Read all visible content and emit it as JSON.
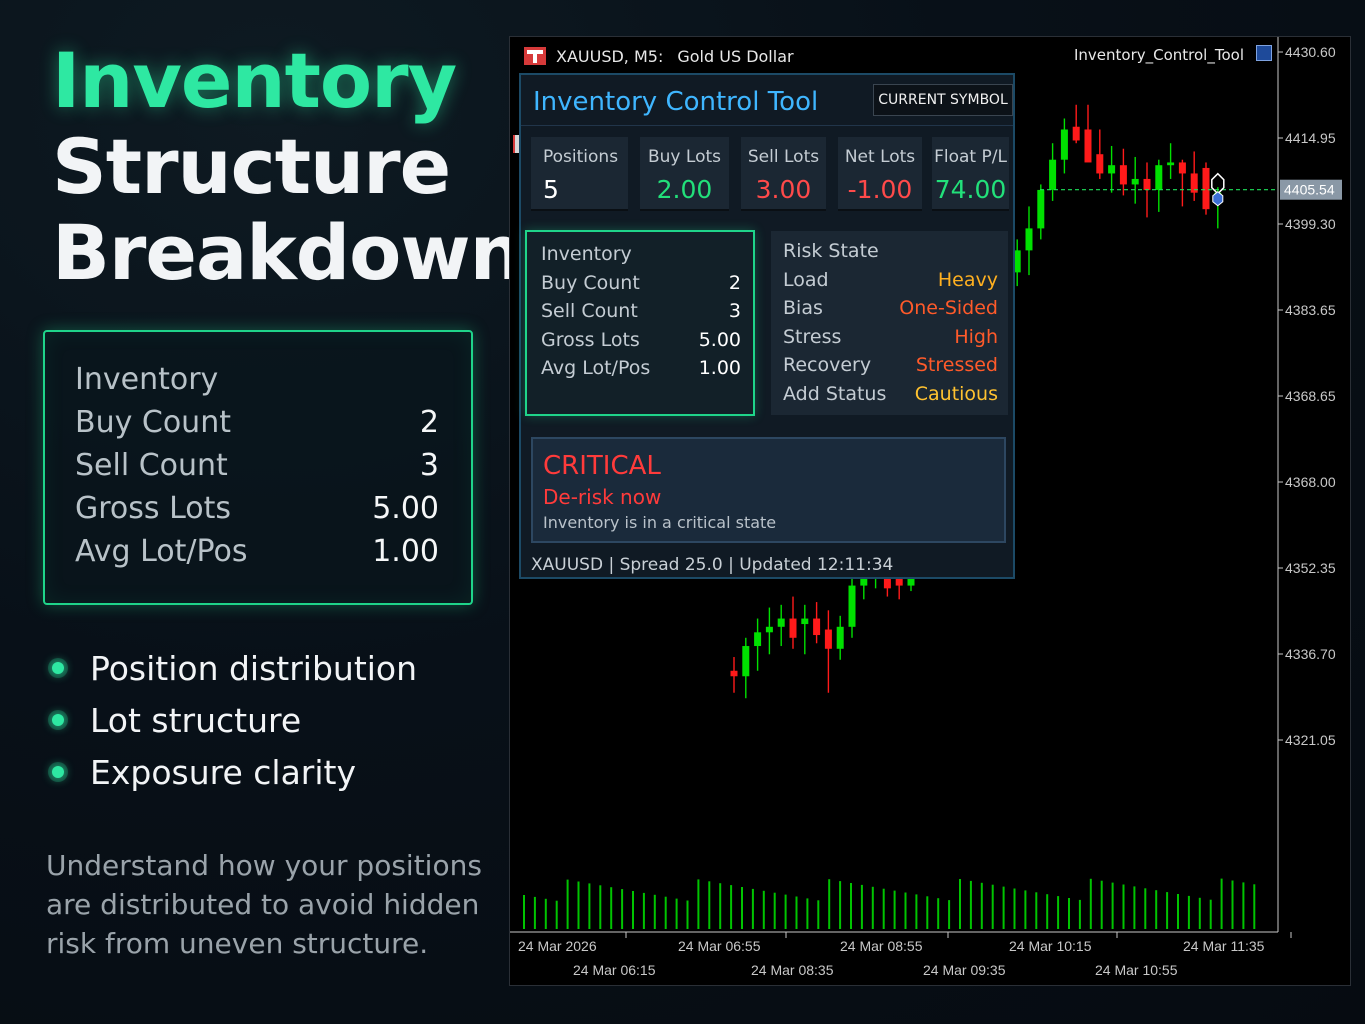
{
  "promo": {
    "title_line1": "Inventory",
    "title_line2": "Structure",
    "title_line3": "Breakdown",
    "card": {
      "heading": "Inventory",
      "rows": [
        {
          "label": "Buy Count",
          "value": "2"
        },
        {
          "label": "Sell Count",
          "value": "3"
        },
        {
          "label": "Gross Lots",
          "value": "5.00"
        },
        {
          "label": "Avg Lot/Pos",
          "value": "1.00"
        }
      ]
    },
    "bullets": [
      "Position distribution",
      "Lot structure",
      "Exposure clarity"
    ],
    "description": "Understand how your positions are distributed to avoid hidden risk from uneven structure."
  },
  "chart_window": {
    "symbol": "XAUUSD, M5:",
    "symbol_description": "Gold US Dollar",
    "indicator_name": "Inventory_Control_Tool"
  },
  "panel": {
    "title": "Inventory Control Tool",
    "current_symbol_button": "CURRENT SYMBOL",
    "metrics": [
      {
        "label": "Positions",
        "value": "5",
        "color": "#ffffff"
      },
      {
        "label": "Buy Lots",
        "value": "2.00",
        "color": "#22e07a"
      },
      {
        "label": "Sell Lots",
        "value": "3.00",
        "color": "#ff4a4a"
      },
      {
        "label": "Net Lots",
        "value": "-1.00",
        "color": "#ff4a4a"
      },
      {
        "label": "Float P/L",
        "value": "74.00",
        "color": "#22e07a"
      }
    ],
    "inventory": {
      "heading": "Inventory",
      "rows": [
        {
          "label": "Buy Count",
          "value": "2"
        },
        {
          "label": "Sell Count",
          "value": "3"
        },
        {
          "label": "Gross Lots",
          "value": "5.00"
        },
        {
          "label": "Avg Lot/Pos",
          "value": "1.00"
        }
      ]
    },
    "risk_state": {
      "heading": "Risk State",
      "rows": [
        {
          "label": "Load",
          "value": "Heavy",
          "color": "#ffb020"
        },
        {
          "label": "Bias",
          "value": "One-Sided",
          "color": "#ff5a2a"
        },
        {
          "label": "Stress",
          "value": "High",
          "color": "#ff5a2a"
        },
        {
          "label": "Recovery",
          "value": "Stressed",
          "color": "#ff5a2a"
        },
        {
          "label": "Add Status",
          "value": "Cautious",
          "color": "#ffc230"
        }
      ]
    },
    "alert": {
      "level": "CRITICAL",
      "action": "De-risk now",
      "message": "Inventory is in a critical state"
    },
    "status": "XAUUSD | Spread 25.0 | Updated 12:11:34"
  },
  "chart_data": {
    "type": "candlestick",
    "symbol": "XAUUSD",
    "timeframe": "M5",
    "current_price": "4405.54",
    "y_ticks": [
      "4430.60",
      "4414.95",
      "4399.30",
      "4383.65",
      "4368.65",
      "4368.00",
      "4352.35",
      "4336.70",
      "4321.05"
    ],
    "x_ticks_top": [
      "24 Mar 2026",
      "24 Mar 06:55",
      "24 Mar 08:55",
      "24 Mar 10:15",
      "24 Mar 11:35"
    ],
    "x_ticks_bottom": [
      "24 Mar 06:15",
      "24 Mar 08:35",
      "24 Mar 09:35",
      "24 Mar 10:55"
    ],
    "up_color": "#00e000",
    "down_color": "#ff1a1a",
    "volume_color": "#00c400",
    "candles": [
      {
        "o": 4318.0,
        "h": 4320.5,
        "l": 4314.0,
        "c": 4317.0
      },
      {
        "o": 4317.0,
        "h": 4324.0,
        "l": 4313.0,
        "c": 4322.5
      },
      {
        "o": 4322.5,
        "h": 4327.5,
        "l": 4318.0,
        "c": 4325.0
      },
      {
        "o": 4325.0,
        "h": 4329.5,
        "l": 4321.0,
        "c": 4326.0
      },
      {
        "o": 4326.0,
        "h": 4330.0,
        "l": 4322.5,
        "c": 4327.5
      },
      {
        "o": 4327.5,
        "h": 4331.5,
        "l": 4322.0,
        "c": 4324.0
      },
      {
        "o": 4326.5,
        "h": 4330.0,
        "l": 4321.0,
        "c": 4327.5
      },
      {
        "o": 4327.5,
        "h": 4330.5,
        "l": 4323.0,
        "c": 4324.5
      },
      {
        "o": 4325.5,
        "h": 4329.0,
        "l": 4314.0,
        "c": 4322.0
      },
      {
        "o": 4322.0,
        "h": 4328.0,
        "l": 4320.0,
        "c": 4326.0
      },
      {
        "o": 4326.0,
        "h": 4336.0,
        "l": 4324.0,
        "c": 4333.5
      },
      {
        "o": 4333.5,
        "h": 4339.0,
        "l": 4331.0,
        "c": 4336.0
      },
      {
        "o": 4336.0,
        "h": 4340.0,
        "l": 4333.0,
        "c": 4338.0
      },
      {
        "o": 4341.0,
        "h": 4345.5,
        "l": 4331.5,
        "c": 4333.0
      },
      {
        "o": 4336.0,
        "h": 4338.0,
        "l": 4331.0,
        "c": 4333.5
      },
      {
        "o": 4333.5,
        "h": 4343.5,
        "l": 4332.5,
        "c": 4341.0
      },
      {
        "o": 4344.0,
        "h": 4346.0,
        "l": 4341.0,
        "c": 4344.5
      },
      {
        "o": 4344.5,
        "h": 4350.0,
        "l": 4343.0,
        "c": 4347.5
      },
      {
        "o": 4353.0,
        "h": 4354.0,
        "l": 4344.5,
        "c": 4346.5
      },
      {
        "o": 4347.0,
        "h": 4350.0,
        "l": 4343.0,
        "c": 4348.5
      },
      {
        "o": 4346.5,
        "h": 4350.0,
        "l": 4344.5,
        "c": 4348.0
      },
      {
        "o": 4348.0,
        "h": 4353.5,
        "l": 4344.0,
        "c": 4353.0
      },
      {
        "o": 4389.0,
        "h": 4392.0,
        "l": 4378.5,
        "c": 4381.5
      },
      {
        "o": 4381.5,
        "h": 4392.5,
        "l": 4379.5,
        "c": 4390.5
      },
      {
        "o": 4390.5,
        "h": 4396.5,
        "l": 4388.0,
        "c": 4394.5
      },
      {
        "o": 4394.5,
        "h": 4402.5,
        "l": 4390.0,
        "c": 4398.5
      },
      {
        "o": 4398.5,
        "h": 4406.5,
        "l": 4396.5,
        "c": 4405.5
      },
      {
        "o": 4405.5,
        "h": 4414.0,
        "l": 4403.5,
        "c": 4411.0
      },
      {
        "o": 4411.0,
        "h": 4418.5,
        "l": 4408.5,
        "c": 4416.5
      },
      {
        "o": 4417.0,
        "h": 4421.0,
        "l": 4414.0,
        "c": 4414.5
      },
      {
        "o": 4416.5,
        "h": 4421.0,
        "l": 4411.0,
        "c": 4410.5
      },
      {
        "o": 4412.0,
        "h": 4416.5,
        "l": 4407.5,
        "c": 4408.5
      },
      {
        "o": 4408.5,
        "h": 4413.5,
        "l": 4405.0,
        "c": 4410.0
      },
      {
        "o": 4410.0,
        "h": 4413.0,
        "l": 4404.5,
        "c": 4406.5
      },
      {
        "o": 4406.5,
        "h": 4411.5,
        "l": 4403.0,
        "c": 4407.5
      },
      {
        "o": 4407.5,
        "h": 4410.5,
        "l": 4400.5,
        "c": 4405.5
      },
      {
        "o": 4405.5,
        "h": 4411.0,
        "l": 4401.5,
        "c": 4410.0
      },
      {
        "o": 4410.0,
        "h": 4414.0,
        "l": 4407.5,
        "c": 4410.5
      },
      {
        "o": 4410.5,
        "h": 4411.0,
        "l": 4402.5,
        "c": 4408.5
      },
      {
        "o": 4408.5,
        "h": 4412.5,
        "l": 4403.5,
        "c": 4405.0
      },
      {
        "o": 4409.5,
        "h": 4410.5,
        "l": 4401.0,
        "c": 4402.0
      },
      {
        "o": 4403.0,
        "h": 4406.0,
        "l": 4398.5,
        "c": 4405.0
      }
    ]
  }
}
